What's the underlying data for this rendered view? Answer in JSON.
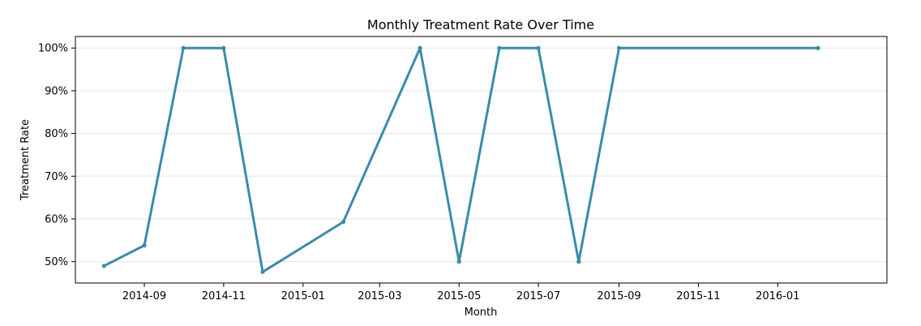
{
  "chart_data": {
    "type": "line",
    "title": "Monthly Treatment Rate Over Time",
    "xlabel": "Month",
    "ylabel": "Treatment Rate",
    "x": [
      "2014-08",
      "2014-09",
      "2014-10",
      "2014-11",
      "2014-12",
      "2015-02",
      "2015-04",
      "2015-05",
      "2015-06",
      "2015-07",
      "2015-08",
      "2015-09",
      "2016-02"
    ],
    "series": [
      {
        "values": [
          49.0,
          53.8,
          100,
          100,
          47.6,
          59.3,
          100,
          50.0,
          100,
          100,
          50.0,
          100,
          100
        ]
      }
    ],
    "xlim": [
      "2014-07-10",
      "2016-03-25"
    ],
    "ylim": [
      45,
      102.7
    ],
    "xticks": [
      "2014-09",
      "2014-11",
      "2015-01",
      "2015-03",
      "2015-05",
      "2015-07",
      "2015-09",
      "2015-11",
      "2016-01"
    ],
    "yticks": [
      50,
      60,
      70,
      80,
      90,
      100
    ],
    "ytick_labels": [
      "50%",
      "60%",
      "70%",
      "80%",
      "90%",
      "100%"
    ],
    "grid": "y",
    "line_color": "#3a8ca9",
    "grid_color": "#e5e5e5"
  }
}
